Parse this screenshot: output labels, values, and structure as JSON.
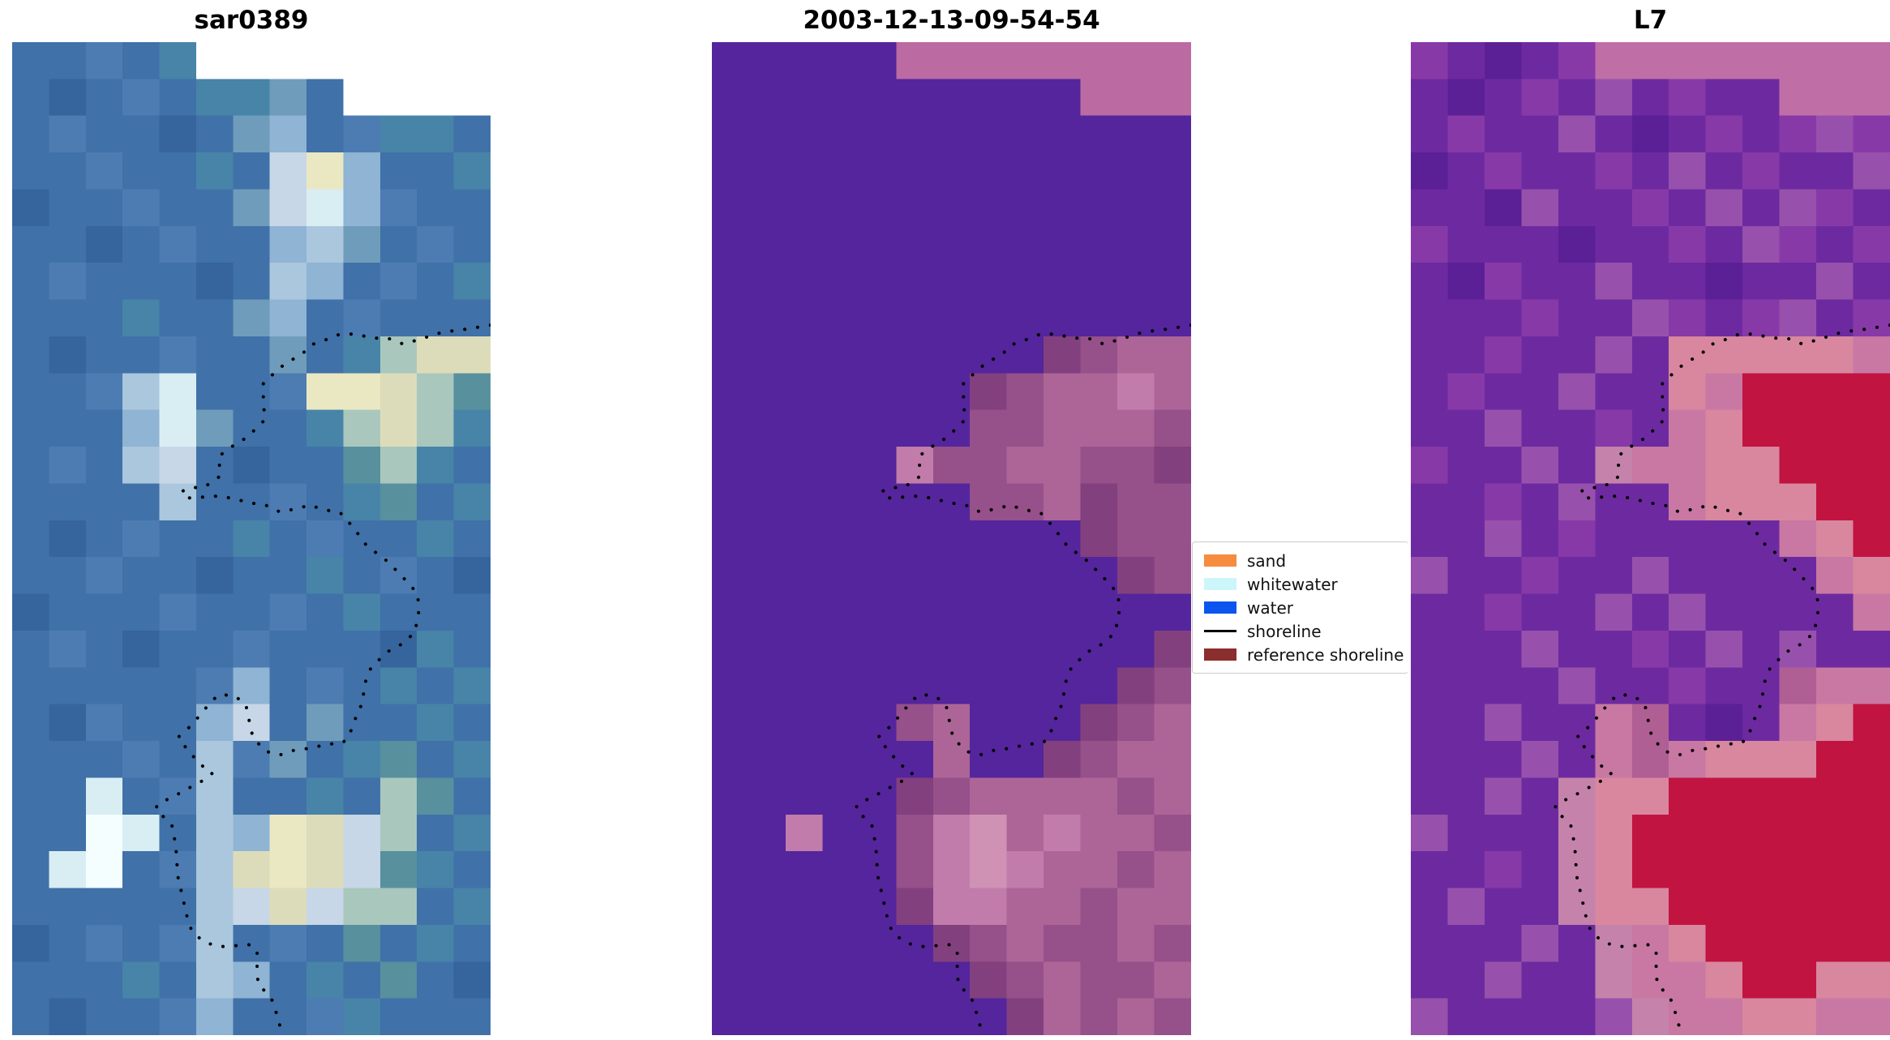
{
  "figure": {
    "background": "#ffffff",
    "description": "Three-panel coastal satellite image comparison with dotted detected shoreline overlay and classification legend"
  },
  "chart_data": {
    "type": "heatmap",
    "title": "",
    "layout": "three image panels side by side, shared dotted shoreline overlay, legend box between panel 2 and panel 3",
    "panels": [
      {
        "title": "sar0389",
        "kind": "SAR satellite image (blue/teal speckle, white no-data steps at top right)",
        "cols": 13,
        "rows": 27,
        "palette": {
          "B": "#4071a8",
          "D": "#36659e",
          "S": "#4c7cb2",
          "T": "#4784a8",
          "G": "#58909e",
          "E": "#6f9cba",
          "N": "#8fb4d4",
          "P": "#abc7dd",
          "M": "#c7d7e7",
          "C": "#d9eef3",
          "I": "#f4feff",
          "Y": "#eae7c3",
          "F": "#dddcba",
          "H": "#a9c7bd",
          "W": "#ffffff"
        },
        "grid": [
          "BBSBTWWWWWWWW",
          "BDBSBTTEBWWWW",
          "BSBBDBENBSTTB",
          "BBSBBTBMYNBBT",
          "DBBSBBEMCNSBB",
          "BBDBSBBNPEBSB",
          "BSBBBDBPNBSBT",
          "BBBTBBENBSBBB",
          "BDBBSBBEBTHFF",
          "BBSPCBBSYYFHG",
          "BBBNCEBBTHFHT",
          "BSBPMBDBBGHTB",
          "BBBBPBBSBTGBT",
          "BDBSBBTBSBBTB",
          "BBSBBDBBTBSBD",
          "DBBBSBBSBTBBB",
          "BSBDBBSBBBDTB",
          "BBBBBSNBSBTBT",
          "BDSBBNMBEBBTB",
          "BBBSBPSEBTGBT",
          "BBCBSPBBTBHGB",
          "BBICBPNYFMHBT",
          "BCIBSPFYFMGTB",
          "BBBBBPMFMHHBT",
          "DBSBSPBSBGBTB",
          "BBBTBPNBTBGBD",
          "BDBBSNBBSTBBB"
        ]
      },
      {
        "title": "2003-12-13-09-54-54",
        "kind": "classified image (flat purple water, mauve/pink land, pink band at top right)",
        "cols": 13,
        "rows": 27,
        "palette": {
          "U": "#54259c",
          "Q": "#bb6aa2",
          "R": "#96508a",
          "V": "#ad6598",
          "X": "#c17cab",
          "Z": "#83407e",
          "O": "#cf92b4",
          "W": "#ffffff"
        },
        "grid": [
          "UUUUUQQQQQQQQ",
          "UUUUUUUUUUQQQ",
          "UUUUUUUUUUUUU",
          "UUUUUUUUUUUUU",
          "UUUUUUUUUUUUU",
          "UUUUUUUUUUUUU",
          "UUUUUUUUUUUUU",
          "UUUUUUUUUUUUU",
          "UUUUUUUUUZRVV",
          "UUUUUUUZRVVXV",
          "UUUUUUURRVVVR",
          "UUUUUXRRVVRRZ",
          "UUUUUUURRVZRR",
          "UUUUUUUUUUZRR",
          "UUUUUUUUUUUZR",
          "UUUUUUUUUUUUU",
          "UUUUUUUUUUUUZ",
          "UUUUUUUUUUUZR",
          "UUUUURVUUUZRV",
          "UUUUUUVUUZRVV",
          "UUUUUZRVVVVRV",
          "UUXUURXOVXVVR",
          "UUUUURXOXVVRV",
          "UUUUUZXXVVRVV",
          "UUUUUUZRVRRVR",
          "UUUUUUUZRVRRV",
          "UUUUUUUUZVRVR"
        ]
      },
      {
        "title": "L7",
        "kind": "Landsat 7 false-colour image (purple water noise, crimson land, pink band at top right)",
        "cols": 13,
        "rows": 27,
        "palette": {
          "u": "#6d2aa0",
          "d": "#5b1f96",
          "m": "#8839a8",
          "q": "#9751ac",
          "Q": "#c06fa6",
          "p": "#c878a2",
          "s": "#d8879f",
          "r": "#c11440",
          "x": "#c583ab",
          "e": "#b05f94",
          "W": "#ffffff"
        },
        "grid": [
          "mudumQQQQQQQQ",
          "udumuqumuuQQQ",
          "umuuqudumumqm",
          "dumuumuqumuuq",
          "uudquumuquqmu",
          "muuuduumuqmum",
          "udmuuquuduuqu",
          "uuumuuqmumqum",
          "uumuuqusssssp",
          "umuuquusprrrr",
          "uuquumupsrrrr",
          "muuquxppssrrr",
          "uumuquupsssrr",
          "uuqumuuuuupsr",
          "quumuuquuuups",
          "uumuuququuuup",
          "uuuquumuququu",
          "uuuuquumuuepp",
          "uuquupeudupsr",
          "uuuqupepsssrr",
          "uuquxssrrrrrr",
          "quuuxsrrrrrrr",
          "uumuxsrrrrrrr",
          "uquuxssrrrrrr",
          "uuuquxpsrrrrr",
          "uuquuxppsrrss",
          "quuuuqxppsspp"
        ]
      }
    ],
    "shoreline": {
      "color": "#000000",
      "style": "dotted",
      "points": [
        [
          1.0,
          0.285
        ],
        [
          0.95,
          0.289
        ],
        [
          0.9,
          0.292
        ],
        [
          0.847,
          0.3
        ],
        [
          0.817,
          0.304
        ],
        [
          0.785,
          0.298
        ],
        [
          0.751,
          0.298
        ],
        [
          0.72,
          0.294
        ],
        [
          0.686,
          0.294
        ],
        [
          0.654,
          0.3
        ],
        [
          0.624,
          0.305
        ],
        [
          0.614,
          0.311
        ],
        [
          0.591,
          0.318
        ],
        [
          0.559,
          0.328
        ],
        [
          0.551,
          0.332
        ],
        [
          0.537,
          0.338
        ],
        [
          0.525,
          0.343
        ],
        [
          0.525,
          0.364
        ],
        [
          0.529,
          0.38
        ],
        [
          0.491,
          0.398
        ],
        [
          0.466,
          0.405
        ],
        [
          0.432,
          0.417
        ],
        [
          0.435,
          0.437
        ],
        [
          0.402,
          0.448
        ],
        [
          0.369,
          0.449
        ],
        [
          0.353,
          0.453
        ],
        [
          0.369,
          0.459
        ],
        [
          0.402,
          0.458
        ],
        [
          0.432,
          0.457
        ],
        [
          0.466,
          0.46
        ],
        [
          0.497,
          0.464
        ],
        [
          0.529,
          0.466
        ],
        [
          0.559,
          0.473
        ],
        [
          0.593,
          0.47
        ],
        [
          0.624,
          0.466
        ],
        [
          0.644,
          0.47
        ],
        [
          0.686,
          0.474
        ],
        [
          0.712,
          0.488
        ],
        [
          0.741,
          0.507
        ],
        [
          0.785,
          0.523
        ],
        [
          0.819,
          0.54
        ],
        [
          0.847,
          0.555
        ],
        [
          0.851,
          0.571
        ],
        [
          0.842,
          0.594
        ],
        [
          0.819,
          0.605
        ],
        [
          0.788,
          0.613
        ],
        [
          0.751,
          0.629
        ],
        [
          0.737,
          0.646
        ],
        [
          0.732,
          0.666
        ],
        [
          0.723,
          0.674
        ],
        [
          0.717,
          0.682
        ],
        [
          0.703,
          0.7
        ],
        [
          0.69,
          0.706
        ],
        [
          0.658,
          0.707
        ],
        [
          0.624,
          0.711
        ],
        [
          0.59,
          0.713
        ],
        [
          0.559,
          0.718
        ],
        [
          0.529,
          0.714
        ],
        [
          0.503,
          0.7
        ],
        [
          0.495,
          0.682
        ],
        [
          0.488,
          0.666
        ],
        [
          0.463,
          0.658
        ],
        [
          0.432,
          0.657
        ],
        [
          0.412,
          0.666
        ],
        [
          0.401,
          0.673
        ],
        [
          0.385,
          0.682
        ],
        [
          0.368,
          0.691
        ],
        [
          0.347,
          0.7
        ],
        [
          0.37,
          0.715
        ],
        [
          0.398,
          0.729
        ],
        [
          0.419,
          0.736
        ],
        [
          0.401,
          0.743
        ],
        [
          0.37,
          0.751
        ],
        [
          0.336,
          0.76
        ],
        [
          0.305,
          0.767
        ],
        [
          0.3,
          0.772
        ],
        [
          0.334,
          0.789
        ],
        [
          0.336,
          0.796
        ],
        [
          0.342,
          0.807
        ],
        [
          0.344,
          0.825
        ],
        [
          0.347,
          0.842
        ],
        [
          0.356,
          0.86
        ],
        [
          0.364,
          0.878
        ],
        [
          0.376,
          0.896
        ],
        [
          0.401,
          0.906
        ],
        [
          0.432,
          0.911
        ],
        [
          0.463,
          0.91
        ],
        [
          0.495,
          0.909
        ],
        [
          0.512,
          0.914
        ],
        [
          0.512,
          0.931
        ],
        [
          0.514,
          0.949
        ],
        [
          0.529,
          0.956
        ],
        [
          0.545,
          0.966
        ],
        [
          0.556,
          0.984
        ],
        [
          0.565,
          1.0
        ]
      ]
    },
    "legend": {
      "position": "center right of middle panel",
      "entries": [
        {
          "label": "sand",
          "color": "#f58c3f",
          "type": "patch"
        },
        {
          "label": "whitewater",
          "color": "#ccf6fa",
          "type": "patch"
        },
        {
          "label": "water",
          "color": "#0c54ee",
          "type": "patch"
        },
        {
          "label": "shoreline",
          "color": "#000000",
          "type": "line"
        },
        {
          "label": "reference shoreline",
          "color": "#8b2e2e",
          "type": "patch"
        }
      ]
    }
  }
}
